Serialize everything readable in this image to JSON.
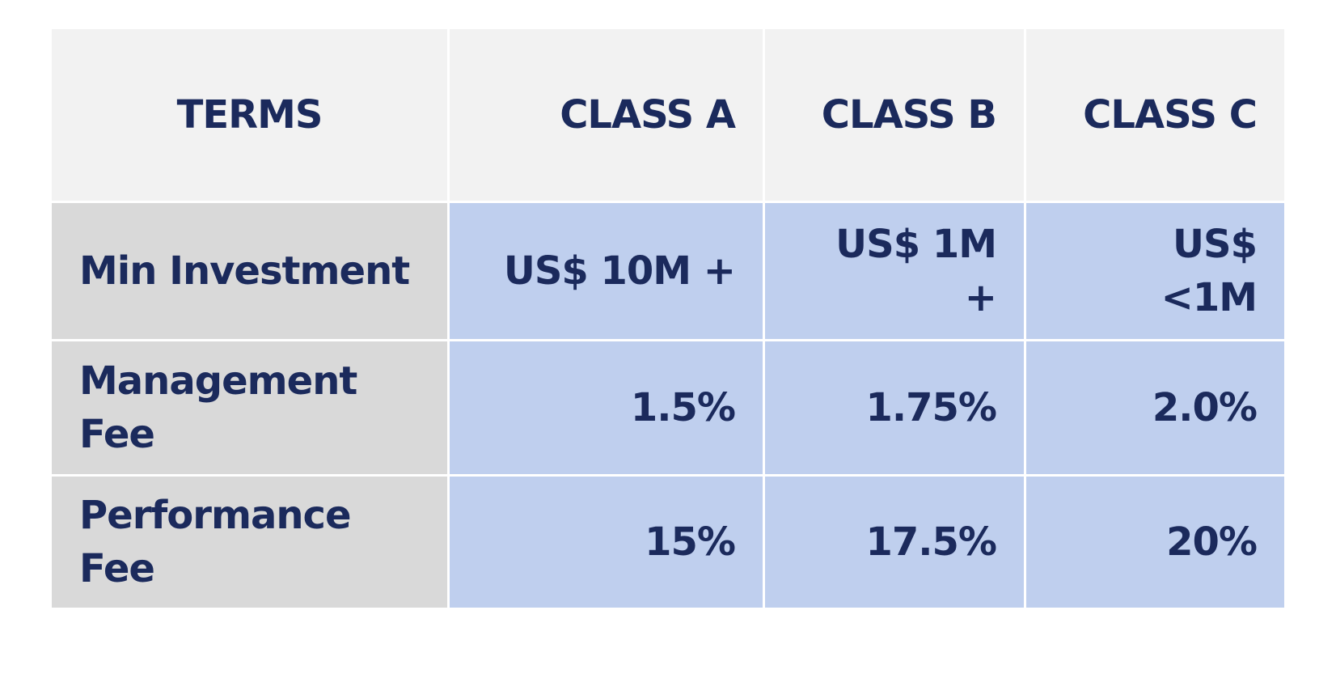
{
  "table": {
    "header": [
      "TERMS",
      "CLASS A",
      "CLASS B",
      "CLASS C"
    ],
    "rows": [
      [
        "Min Investment",
        "US$ 10M +",
        "US$ 1M +",
        "US$  <1M"
      ],
      [
        "Management Fee",
        "1.5%",
        "1.75%",
        "2.0%"
      ],
      [
        "Performance Fee",
        "15%",
        "17.5%",
        "20%"
      ]
    ]
  }
}
